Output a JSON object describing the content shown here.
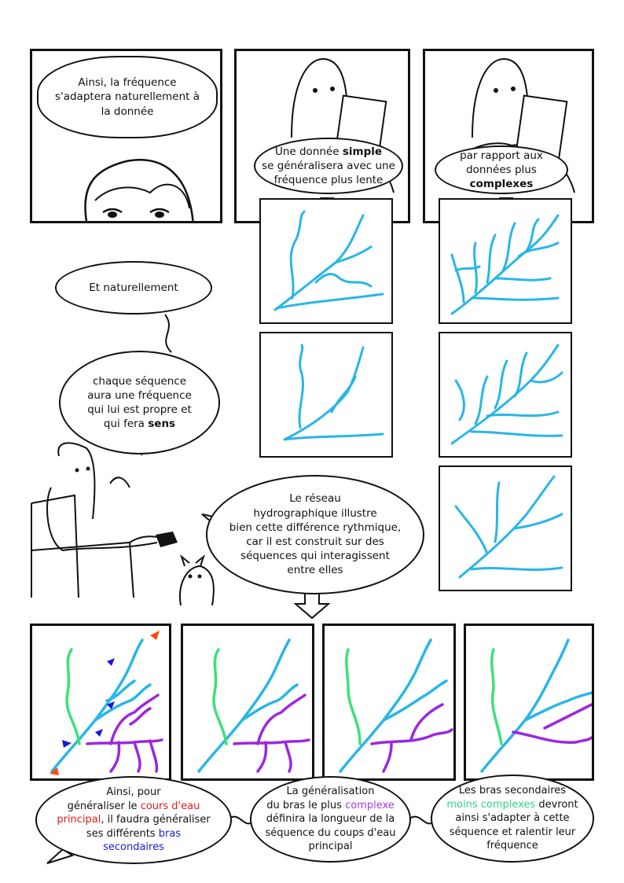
{
  "panel1": {
    "speech": "Ainsi, la fréquence\ns'adaptera naturellement à\nla donnée"
  },
  "panel2": {
    "speech_a": "Une donnée ",
    "speech_bold": "simple",
    "speech_b": "\nse généralisera avec une\nfréquence plus lente"
  },
  "panel3": {
    "speech_a": "par rapport aux\ndonnées plus ",
    "speech_bold": "complexes"
  },
  "bubble_naturellement": {
    "text": "Et naturellement"
  },
  "bubble_sequence": {
    "text_a": "chaque séquence\naura une fréquence\nqui lui est propre et\nqui fera ",
    "text_bold": "sens"
  },
  "bubble_reseau": {
    "text": "Le réseau\nhydrographique illustre\nbien cette différence rythmique,\ncar il est construit sur des\nséquences qui interagissent\nentre elles"
  },
  "caption1": {
    "a": "Ainsi, pour\ngénéraliser le ",
    "red": "cours d'eau\nprincipal",
    "b": ", il faudra généraliser\nses différents ",
    "blue": "bras\nsecondaires"
  },
  "caption2": {
    "a": "La généralisation\ndu bras le plus ",
    "purple": "complexe",
    "b": "\ndéfinira la longueur de la\nséquence du coups d'eau\nprincipal"
  },
  "caption3": {
    "a": "Les bras secondaires\n",
    "green": "moins complexes",
    "b": " devront\nainsi s'adapter à cette\nséquence et ralentir leur\nfréquence"
  },
  "colors": {
    "river_blue": "#29b6e8",
    "river_green": "#3ee07a",
    "river_purple": "#9b28e0",
    "arrow_blue": "#1a1ad6",
    "arrow_orange": "#ff4a12"
  }
}
